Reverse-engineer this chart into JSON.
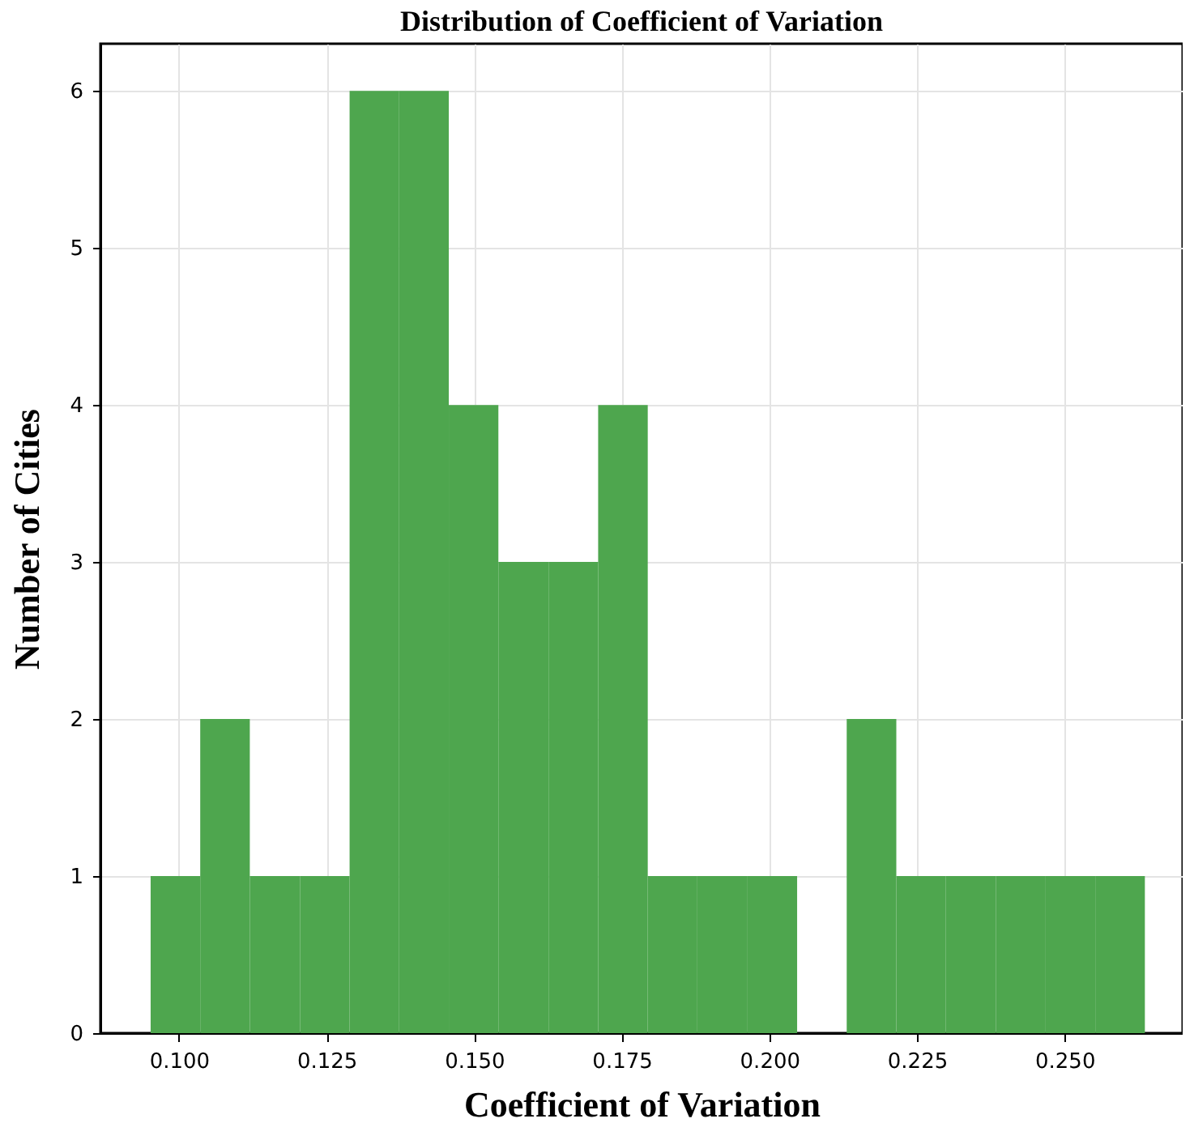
{
  "chart_data": {
    "type": "histogram",
    "title": "Distribution of Coefficient of Variation",
    "xlabel": "Coefficient of Variation",
    "ylabel": "Number of Cities",
    "bins": [
      0.0952,
      0.1036,
      0.112,
      0.1205,
      0.1289,
      0.1373,
      0.1457,
      0.1541,
      0.1626,
      0.171,
      0.1794,
      0.1878,
      0.1962,
      0.2047,
      0.2131,
      0.2215,
      0.2299,
      0.2384,
      0.2468,
      0.2552,
      0.2636
    ],
    "values": [
      1,
      2,
      1,
      1,
      6,
      6,
      4,
      3,
      3,
      4,
      1,
      1,
      1,
      0,
      2,
      1,
      1,
      1,
      1,
      1
    ],
    "color": "#4ea64e",
    "xlim": [
      0.0867,
      0.27
    ],
    "xticks": [
      {
        "value": 0.1,
        "label": "0.100"
      },
      {
        "value": 0.125,
        "label": "0.125"
      },
      {
        "value": 0.15,
        "label": "0.150"
      },
      {
        "value": 0.175,
        "label": "0.175"
      },
      {
        "value": 0.2,
        "label": "0.200"
      },
      {
        "value": 0.225,
        "label": "0.225"
      },
      {
        "value": 0.25,
        "label": "0.250"
      }
    ],
    "ylim": [
      0,
      6.3
    ],
    "yticks": [
      0,
      1,
      2,
      3,
      4,
      5,
      6
    ],
    "grid": true
  }
}
